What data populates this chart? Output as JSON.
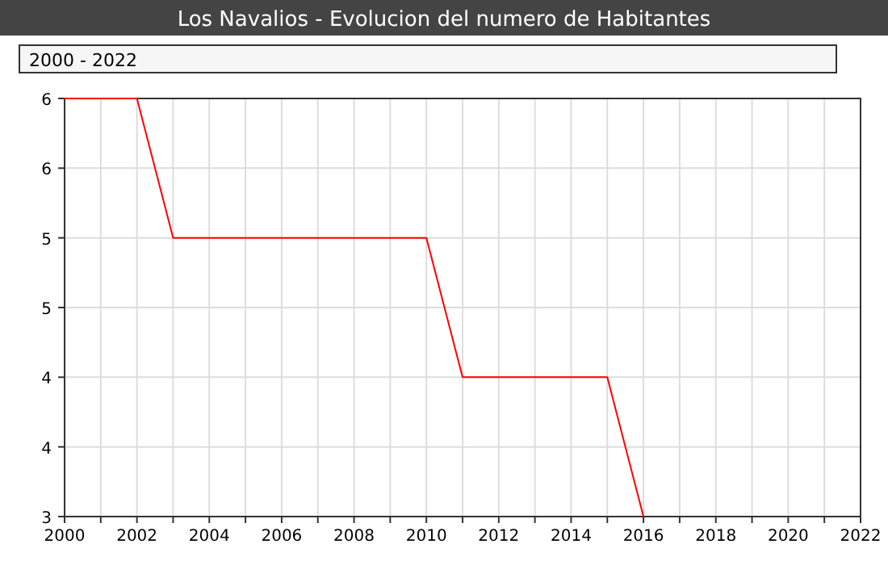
{
  "chart_data": {
    "type": "line",
    "title": "Los Navalios - Evolucion del numero de Habitantes",
    "annotations": [
      "2000 - 2022"
    ],
    "x": [
      2000,
      2001,
      2002,
      2003,
      2004,
      2005,
      2006,
      2007,
      2008,
      2009,
      2010,
      2011,
      2012,
      2013,
      2014,
      2015,
      2016
    ],
    "series": [
      {
        "color": "#ff0000",
        "values": [
          6,
          6,
          6,
          5,
          5,
          5,
          5,
          5,
          5,
          5,
          5,
          4,
          4,
          4,
          4,
          4,
          3
        ]
      }
    ],
    "xlim": [
      2000,
      2022
    ],
    "xticks": [
      2000,
      {
        "value": 2001,
        "label": null
      },
      2002,
      {
        "value": 2003,
        "label": null
      },
      2004,
      {
        "value": 2005,
        "label": null
      },
      2006,
      {
        "value": 2007,
        "label": null
      },
      2008,
      {
        "value": 2009,
        "label": null
      },
      2010,
      {
        "value": 2011,
        "label": null
      },
      2012,
      {
        "value": 2013,
        "label": null
      },
      2014,
      {
        "value": 2015,
        "label": null
      },
      2016,
      {
        "value": 2017,
        "label": null
      },
      2018,
      {
        "value": 2019,
        "label": null
      },
      2020,
      {
        "value": 2021,
        "label": null
      },
      2022
    ],
    "ylim": [
      3,
      6
    ],
    "yticks": [
      3,
      {
        "value": 3.5,
        "label": "4"
      },
      4,
      {
        "value": 4.5,
        "label": "5"
      },
      5,
      {
        "value": 5.5,
        "label": "6"
      },
      6
    ],
    "grid": true,
    "marker": "none",
    "line_style": "solid"
  }
}
